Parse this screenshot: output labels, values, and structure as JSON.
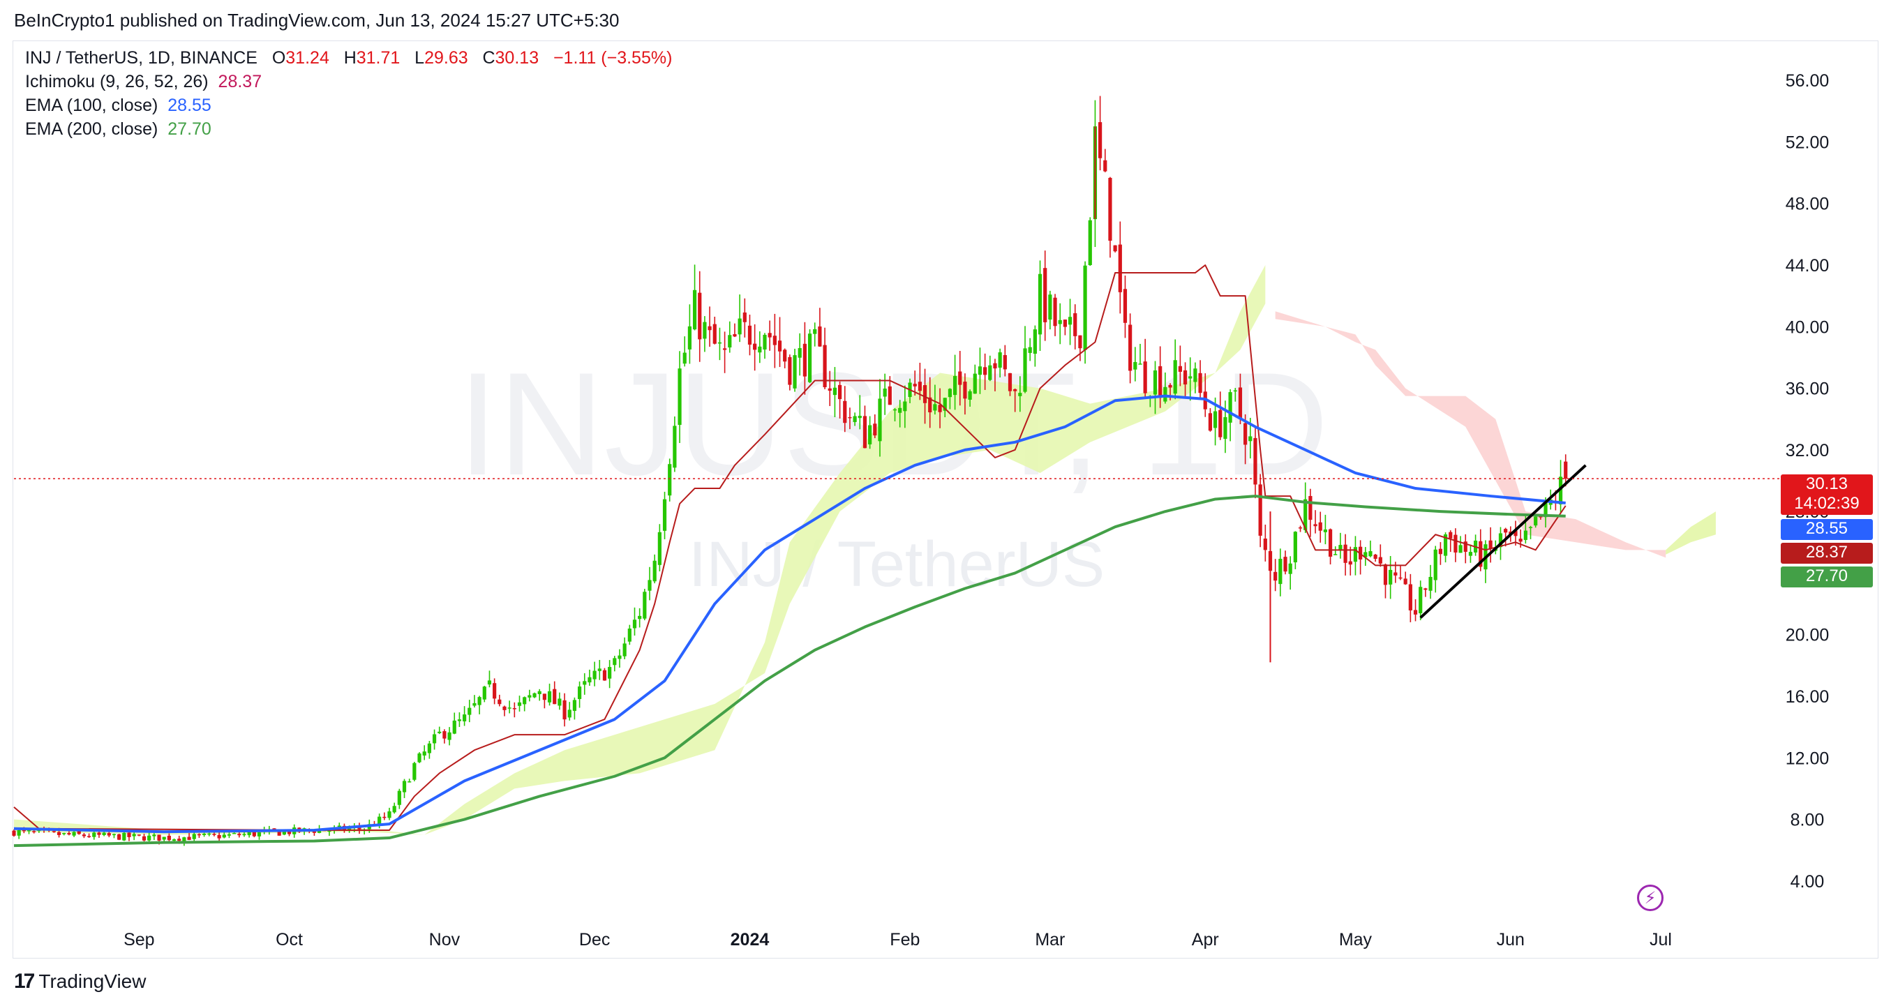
{
  "header": {
    "publisher_line": "BeInCrypto1 published on TradingView.com, Jun 13, 2024 15:27 UTC+5:30"
  },
  "legend": {
    "symbol": "INJ / TetherUS, 1D, BINANCE",
    "open_k": "O",
    "open_v": "31.24",
    "high_k": "H",
    "high_v": "31.71",
    "low_k": "L",
    "low_v": "29.63",
    "close_k": "C",
    "close_v": "30.13",
    "change": "−1.11 (−3.55%)",
    "ichimoku_label": "Ichimoku (9, 26, 52, 26)",
    "ichimoku_value": "28.37",
    "ema100_label": "EMA (100, close)",
    "ema100_value": "28.55",
    "ema200_label": "EMA (200, close)",
    "ema200_value": "27.70"
  },
  "watermark": {
    "symbol": "INJUSDT, 1D",
    "name": "INJ / TetherUS"
  },
  "price_labels": {
    "last_price": "30.13",
    "countdown": "14:02:39",
    "ema100": "28.55",
    "ichimoku": "28.37",
    "ema200": "27.70"
  },
  "footer": {
    "brand": "TradingView",
    "brand_mark": "17"
  },
  "colors": {
    "up": "#26c600",
    "down": "#d8141b",
    "ema100": "#2962ff",
    "ema200": "#43a047",
    "kijun": "#b71c1c",
    "cloud_bull": "#e6f7b0",
    "cloud_bear": "#fcd2d2",
    "trend": "#000000"
  },
  "chart_data": {
    "type": "candlestick",
    "title": "INJ / TetherUS, 1D, BINANCE",
    "ylim": [
      1.5,
      58.5
    ],
    "y_ticks": [
      "56.00",
      "52.00",
      "48.00",
      "44.00",
      "40.00",
      "36.00",
      "32.00",
      "28.00",
      "24.00",
      "20.00",
      "16.00",
      "12.00",
      "8.00",
      "4.00"
    ],
    "x_ticks": [
      {
        "label": "Sep",
        "day": 25
      },
      {
        "label": "Oct",
        "day": 55
      },
      {
        "label": "Nov",
        "day": 86
      },
      {
        "label": "Dec",
        "day": 116
      },
      {
        "label": "2024",
        "day": 147
      },
      {
        "label": "Feb",
        "day": 178
      },
      {
        "label": "Mar",
        "day": 207
      },
      {
        "label": "Apr",
        "day": 238
      },
      {
        "label": "May",
        "day": 268
      },
      {
        "label": "Jun",
        "day": 299
      },
      {
        "label": "Jul",
        "day": 329
      }
    ],
    "x_range_days": [
      0,
      352
    ],
    "price_series": [
      [
        0,
        7.2
      ],
      [
        10,
        7.0
      ],
      [
        20,
        6.9
      ],
      [
        30,
        6.8
      ],
      [
        40,
        6.9
      ],
      [
        50,
        7.1
      ],
      [
        60,
        7.3
      ],
      [
        70,
        7.4
      ],
      [
        75,
        8.3
      ],
      [
        80,
        11.5
      ],
      [
        85,
        13.5
      ],
      [
        90,
        14.5
      ],
      [
        95,
        16.5
      ],
      [
        100,
        15.0
      ],
      [
        105,
        16.5
      ],
      [
        110,
        15.0
      ],
      [
        115,
        17.0
      ],
      [
        120,
        18.0
      ],
      [
        125,
        21.5
      ],
      [
        128,
        25.0
      ],
      [
        131,
        32.0
      ],
      [
        133,
        37.0
      ],
      [
        136,
        41.0
      ],
      [
        139,
        39.0
      ],
      [
        142,
        38.0
      ],
      [
        145,
        39.5
      ],
      [
        150,
        40.0
      ],
      [
        155,
        37.5
      ],
      [
        160,
        38.5
      ],
      [
        165,
        35.0
      ],
      [
        170,
        33.0
      ],
      [
        175,
        35.5
      ],
      [
        180,
        36.0
      ],
      [
        185,
        34.5
      ],
      [
        190,
        36.5
      ],
      [
        195,
        38.5
      ],
      [
        200,
        35.5
      ],
      [
        205,
        42.0
      ],
      [
        210,
        39.0
      ],
      [
        213,
        40.0
      ],
      [
        216,
        52.0
      ],
      [
        219,
        47.0
      ],
      [
        222,
        39.0
      ],
      [
        225,
        37.0
      ],
      [
        230,
        36.5
      ],
      [
        235,
        37.0
      ],
      [
        240,
        33.5
      ],
      [
        244,
        35.0
      ],
      [
        247,
        32.5
      ],
      [
        249,
        26.0
      ],
      [
        252,
        24.0
      ],
      [
        255,
        25.5
      ],
      [
        258,
        28.5
      ],
      [
        262,
        26.5
      ],
      [
        266,
        24.5
      ],
      [
        270,
        26.0
      ],
      [
        274,
        24.0
      ],
      [
        278,
        22.5
      ],
      [
        280,
        21.5
      ],
      [
        283,
        24.0
      ],
      [
        286,
        26.5
      ],
      [
        290,
        25.5
      ],
      [
        294,
        25.0
      ],
      [
        298,
        26.5
      ],
      [
        301,
        25.5
      ],
      [
        304,
        27.0
      ],
      [
        307,
        28.5
      ],
      [
        310,
        30.13
      ]
    ],
    "ema100": [
      [
        0,
        7.4
      ],
      [
        30,
        7.2
      ],
      [
        60,
        7.3
      ],
      [
        75,
        7.7
      ],
      [
        90,
        10.5
      ],
      [
        105,
        12.5
      ],
      [
        120,
        14.5
      ],
      [
        130,
        17.0
      ],
      [
        140,
        22.0
      ],
      [
        150,
        25.5
      ],
      [
        160,
        27.5
      ],
      [
        170,
        29.5
      ],
      [
        180,
        31.0
      ],
      [
        190,
        32.0
      ],
      [
        200,
        32.5
      ],
      [
        210,
        33.5
      ],
      [
        220,
        35.2
      ],
      [
        230,
        35.5
      ],
      [
        238,
        35.3
      ],
      [
        248,
        33.5
      ],
      [
        258,
        32.0
      ],
      [
        268,
        30.5
      ],
      [
        280,
        29.5
      ],
      [
        295,
        29.0
      ],
      [
        310,
        28.55
      ]
    ],
    "ema200": [
      [
        0,
        6.3
      ],
      [
        30,
        6.5
      ],
      [
        60,
        6.6
      ],
      [
        75,
        6.8
      ],
      [
        90,
        8.0
      ],
      [
        105,
        9.5
      ],
      [
        120,
        10.8
      ],
      [
        130,
        12.0
      ],
      [
        140,
        14.5
      ],
      [
        150,
        17.0
      ],
      [
        160,
        19.0
      ],
      [
        170,
        20.5
      ],
      [
        180,
        21.8
      ],
      [
        190,
        23.0
      ],
      [
        200,
        24.0
      ],
      [
        210,
        25.5
      ],
      [
        220,
        27.0
      ],
      [
        230,
        28.0
      ],
      [
        240,
        28.8
      ],
      [
        248,
        29.0
      ],
      [
        258,
        28.6
      ],
      [
        270,
        28.3
      ],
      [
        285,
        28.0
      ],
      [
        300,
        27.8
      ],
      [
        310,
        27.7
      ]
    ],
    "kijun": [
      [
        0,
        8.8
      ],
      [
        5,
        7.4
      ],
      [
        60,
        7.3
      ],
      [
        75,
        7.3
      ],
      [
        80,
        9.5
      ],
      [
        85,
        11.0
      ],
      [
        92,
        12.5
      ],
      [
        100,
        13.5
      ],
      [
        110,
        13.5
      ],
      [
        118,
        14.5
      ],
      [
        125,
        19.0
      ],
      [
        128,
        22.0
      ],
      [
        131,
        26.0
      ],
      [
        133,
        28.5
      ],
      [
        136,
        29.5
      ],
      [
        141,
        29.5
      ],
      [
        144,
        31.0
      ],
      [
        150,
        33.0
      ],
      [
        160,
        36.5
      ],
      [
        175,
        36.5
      ],
      [
        185,
        35.0
      ],
      [
        196,
        31.5
      ],
      [
        200,
        32.0
      ],
      [
        205,
        36.0
      ],
      [
        210,
        37.5
      ],
      [
        216,
        39.0
      ],
      [
        220,
        43.5
      ],
      [
        236,
        43.5
      ],
      [
        238,
        44.0
      ],
      [
        241,
        42.0
      ],
      [
        246,
        42.0
      ],
      [
        249,
        32.0
      ],
      [
        250,
        29.0
      ],
      [
        255,
        29.0
      ],
      [
        260,
        25.5
      ],
      [
        268,
        25.5
      ],
      [
        272,
        24.5
      ],
      [
        278,
        24.5
      ],
      [
        284,
        26.5
      ],
      [
        294,
        25.5
      ],
      [
        300,
        26.0
      ],
      [
        304,
        25.5
      ],
      [
        310,
        28.37
      ]
    ],
    "trendline": [
      [
        281,
        21.1
      ],
      [
        314,
        31.0
      ]
    ]
  }
}
